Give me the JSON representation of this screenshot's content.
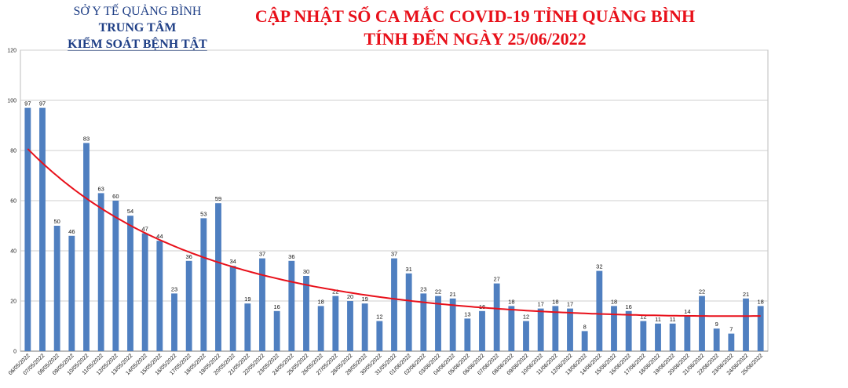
{
  "header": {
    "agency_line1": "SỞ Y TẾ QUẢNG BÌNH",
    "agency_line2": "TRUNG TÂM",
    "agency_line3": "KIỂM SOÁT BỆNH TẬT",
    "title_line1": "CẬP NHẬT SỐ CA MẮC COVID-19 TỈNH QUẢNG BÌNH",
    "title_line2": "TÍNH ĐẾN NGÀY 25/06/2022"
  },
  "colors": {
    "bar": "#4f7fc0",
    "trendline": "#e8101a",
    "title": "#e8101a",
    "agency": "#1f3f86",
    "grid": "#cfcfcf"
  },
  "chart_data": {
    "type": "bar",
    "title": "CẬP NHẬT SỐ CA MẮC COVID-19 TỈNH QUẢNG BÌNH",
    "subtitle": "TÍNH ĐẾN NGÀY 25/06/2022",
    "xlabel": "",
    "ylabel": "",
    "ylim": [
      0,
      120
    ],
    "yticks": [
      0,
      20,
      40,
      60,
      80,
      100,
      120
    ],
    "grid": true,
    "trendline": "exponential",
    "categories": [
      "06/05/2022",
      "07/05/2022",
      "08/05/2022",
      "09/05/2022",
      "10/05/2022",
      "11/05/2022",
      "12/05/2022",
      "13/05/2022",
      "14/05/2022",
      "15/05/2022",
      "16/05/2022",
      "17/05/2022",
      "18/05/2022",
      "19/05/2022",
      "20/05/2022",
      "21/05/2022",
      "22/05/2022",
      "23/05/2022",
      "24/05/2022",
      "25/05/2022",
      "26/05/2022",
      "27/05/2022",
      "28/05/2022",
      "29/05/2022",
      "30/05/2022",
      "31/05/2022",
      "01/06/2022",
      "02/06/2022",
      "03/06/2022",
      "04/06/2022",
      "05/06/2022",
      "06/06/2022",
      "07/06/2022",
      "08/06/2022",
      "09/06/2022",
      "10/06/2022",
      "11/06/2022",
      "12/06/2022",
      "13/06/2022",
      "14/06/2022",
      "15/06/2022",
      "16/06/2022",
      "17/06/2022",
      "18/06/2022",
      "19/06/2022",
      "20/06/2022",
      "21/06/2022",
      "22/06/2022",
      "23/06/2022",
      "24/06/2022",
      "25/06/2022"
    ],
    "values": [
      97,
      97,
      50,
      46,
      83,
      63,
      60,
      54,
      47,
      44,
      23,
      36,
      53,
      59,
      34,
      19,
      37,
      16,
      36,
      30,
      18,
      22,
      20,
      19,
      12,
      37,
      31,
      23,
      22,
      21,
      13,
      16,
      27,
      18,
      12,
      17,
      18,
      17,
      8,
      32,
      18,
      16,
      12,
      11,
      11,
      14,
      22,
      9,
      7,
      21,
      18
    ]
  }
}
